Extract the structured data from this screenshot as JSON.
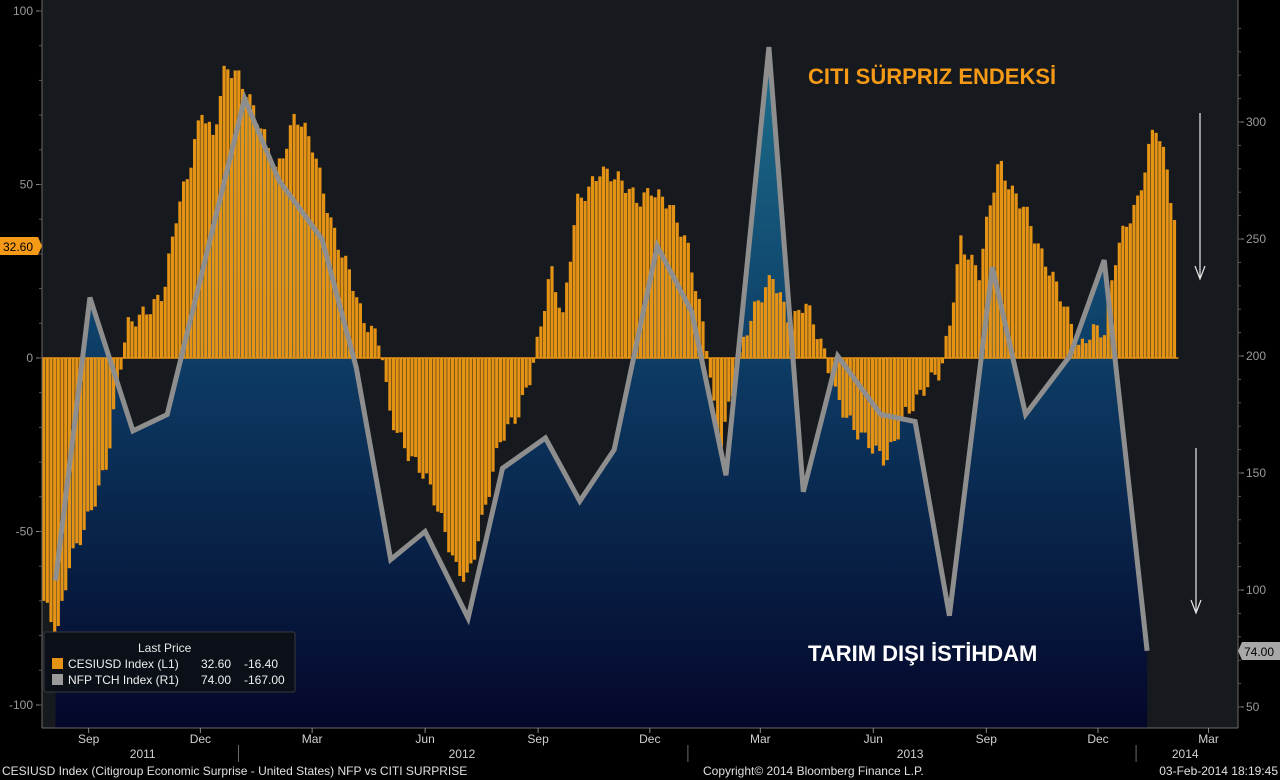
{
  "chart_data": {
    "type": "bar",
    "footer": {
      "left": "CESIUSD Index (Citigroup Economic Surprise - United States) NFP vs CITI SURPRISE",
      "center": "Copyright© 2014 Bloomberg Finance L.P.",
      "right": "03-Feb-2014 18:19:45"
    },
    "annotations": {
      "top": "CITI SÜRPRIZ ENDEKSİ",
      "bottom": "TARIM DIŞI İSTİHDAM"
    },
    "colors": {
      "background": "#16191d",
      "surprise_bar": "#e59314",
      "nfp_line": "#8e8e8e",
      "nfp_area_top": "#1b6986",
      "nfp_area_bottom": "#050a2e",
      "label_orange": "#f59a17"
    },
    "y_left": {
      "label": "",
      "range": [
        -105,
        100
      ],
      "ticks": [
        100,
        50,
        0,
        -50,
        -100
      ]
    },
    "y_right": {
      "label": "",
      "range": [
        44,
        350
      ],
      "ticks": [
        300,
        250,
        200,
        150,
        100,
        50
      ]
    },
    "x_axis": {
      "months": [
        {
          "label": "Sep",
          "date": "2011-09-01"
        },
        {
          "label": "Dec",
          "date": "2011-12-01"
        },
        {
          "label": "Mar",
          "date": "2012-03-01"
        },
        {
          "label": "Jun",
          "date": "2012-06-01"
        },
        {
          "label": "Sep",
          "date": "2012-09-01"
        },
        {
          "label": "Dec",
          "date": "2012-12-01"
        },
        {
          "label": "Mar",
          "date": "2013-03-01"
        },
        {
          "label": "Jun",
          "date": "2013-06-01"
        },
        {
          "label": "Sep",
          "date": "2013-09-01"
        },
        {
          "label": "Dec",
          "date": "2013-12-01"
        },
        {
          "label": "Mar",
          "date": "2014-03-01"
        }
      ],
      "years": [
        {
          "label": "2011",
          "date": "2011-10-15"
        },
        {
          "label": "2012",
          "date": "2012-07-01"
        },
        {
          "label": "2013",
          "date": "2013-07-01"
        },
        {
          "label": "2014",
          "date": "2014-02-10"
        }
      ],
      "year_separators": [
        "2012-01-01",
        "2013-01-01",
        "2014-01-01"
      ],
      "range": [
        "2011-07-25",
        "2014-03-25"
      ]
    },
    "series": [
      {
        "name": "CESIUSD Index",
        "axis": "left",
        "legend_label": "CESIUSD Index  (L1)",
        "last_price": "32.60",
        "change": "-16.40",
        "tag": "32.60",
        "knots": [
          [
            "2011-07-25",
            -70
          ],
          [
            "2011-08-05",
            -82
          ],
          [
            "2011-08-15",
            -60
          ],
          [
            "2011-08-31",
            -44
          ],
          [
            "2011-09-15",
            -30
          ],
          [
            "2011-09-25",
            -5
          ],
          [
            "2011-10-01",
            8
          ],
          [
            "2011-10-15",
            14
          ],
          [
            "2011-10-31",
            20
          ],
          [
            "2011-11-10",
            40
          ],
          [
            "2011-11-20",
            52
          ],
          [
            "2011-12-01",
            72
          ],
          [
            "2011-12-10",
            65
          ],
          [
            "2011-12-20",
            85
          ],
          [
            "2011-12-31",
            80
          ],
          [
            "2012-01-10",
            72
          ],
          [
            "2012-01-20",
            65
          ],
          [
            "2012-01-31",
            55
          ],
          [
            "2012-02-15",
            70
          ],
          [
            "2012-02-29",
            60
          ],
          [
            "2012-03-15",
            40
          ],
          [
            "2012-03-31",
            25
          ],
          [
            "2012-04-10",
            10
          ],
          [
            "2012-04-25",
            3
          ],
          [
            "2012-05-01",
            -15
          ],
          [
            "2012-05-15",
            -25
          ],
          [
            "2012-05-31",
            -35
          ],
          [
            "2012-06-15",
            -50
          ],
          [
            "2012-06-25",
            -60
          ],
          [
            "2012-07-05",
            -62
          ],
          [
            "2012-07-20",
            -42
          ],
          [
            "2012-07-31",
            -25
          ],
          [
            "2012-08-15",
            -15
          ],
          [
            "2012-08-25",
            -3
          ],
          [
            "2012-09-01",
            8
          ],
          [
            "2012-09-10",
            25
          ],
          [
            "2012-09-20",
            10
          ],
          [
            "2012-10-01",
            45
          ],
          [
            "2012-10-20",
            55
          ],
          [
            "2012-11-05",
            50
          ],
          [
            "2012-11-20",
            45
          ],
          [
            "2012-12-01",
            50
          ],
          [
            "2012-12-15",
            45
          ],
          [
            "2012-12-31",
            30
          ],
          [
            "2013-01-15",
            5
          ],
          [
            "2013-01-25",
            -25
          ],
          [
            "2013-02-05",
            -10
          ],
          [
            "2013-02-15",
            5
          ],
          [
            "2013-02-25",
            15
          ],
          [
            "2013-03-10",
            25
          ],
          [
            "2013-03-25",
            10
          ],
          [
            "2013-04-05",
            15
          ],
          [
            "2013-04-20",
            2
          ],
          [
            "2013-05-01",
            -10
          ],
          [
            "2013-05-15",
            -20
          ],
          [
            "2013-05-31",
            -28
          ],
          [
            "2013-06-10",
            -30
          ],
          [
            "2013-06-25",
            -15
          ],
          [
            "2013-07-10",
            -10
          ],
          [
            "2013-07-25",
            -5
          ],
          [
            "2013-08-01",
            10
          ],
          [
            "2013-08-10",
            35
          ],
          [
            "2013-08-25",
            25
          ],
          [
            "2013-09-01",
            40
          ],
          [
            "2013-09-10",
            55
          ],
          [
            "2013-09-20",
            48
          ],
          [
            "2013-10-01",
            45
          ],
          [
            "2013-10-15",
            30
          ],
          [
            "2013-11-01",
            15
          ],
          [
            "2013-11-15",
            3
          ],
          [
            "2013-11-25",
            10
          ],
          [
            "2013-12-05",
            8
          ],
          [
            "2013-12-15",
            30
          ],
          [
            "2014-01-01",
            45
          ],
          [
            "2014-01-15",
            70
          ],
          [
            "2014-01-25",
            55
          ],
          [
            "2014-02-02",
            32.6
          ]
        ]
      },
      {
        "name": "NFP TCH Index",
        "axis": "right",
        "legend_label": "NFP TCH Index  (R1)",
        "last_price": "74.00",
        "change": "-167.00",
        "tag": "74.00",
        "points": [
          [
            "2011-08-05",
            104
          ],
          [
            "2011-09-02",
            225
          ],
          [
            "2011-10-07",
            168
          ],
          [
            "2011-11-04",
            175
          ],
          [
            "2011-12-02",
            235
          ],
          [
            "2012-01-06",
            310
          ],
          [
            "2012-02-03",
            275
          ],
          [
            "2012-03-09",
            250
          ],
          [
            "2012-04-06",
            195
          ],
          [
            "2012-05-04",
            113
          ],
          [
            "2012-06-01",
            125
          ],
          [
            "2012-07-06",
            88
          ],
          [
            "2012-08-03",
            152
          ],
          [
            "2012-09-07",
            165
          ],
          [
            "2012-10-05",
            138
          ],
          [
            "2012-11-02",
            160
          ],
          [
            "2012-12-07",
            247
          ],
          [
            "2013-01-04",
            219
          ],
          [
            "2013-02-01",
            149
          ],
          [
            "2013-03-08",
            332
          ],
          [
            "2013-04-05",
            142
          ],
          [
            "2013-05-03",
            200
          ],
          [
            "2013-06-07",
            175
          ],
          [
            "2013-07-05",
            172
          ],
          [
            "2013-08-02",
            89
          ],
          [
            "2013-09-06",
            238
          ],
          [
            "2013-10-03",
            175
          ],
          [
            "2013-11-08",
            200
          ],
          [
            "2013-12-06",
            241
          ],
          [
            "2014-01-10",
            74
          ]
        ]
      }
    ],
    "legend": {
      "title": "Last Price",
      "position": "bottom-left"
    }
  }
}
